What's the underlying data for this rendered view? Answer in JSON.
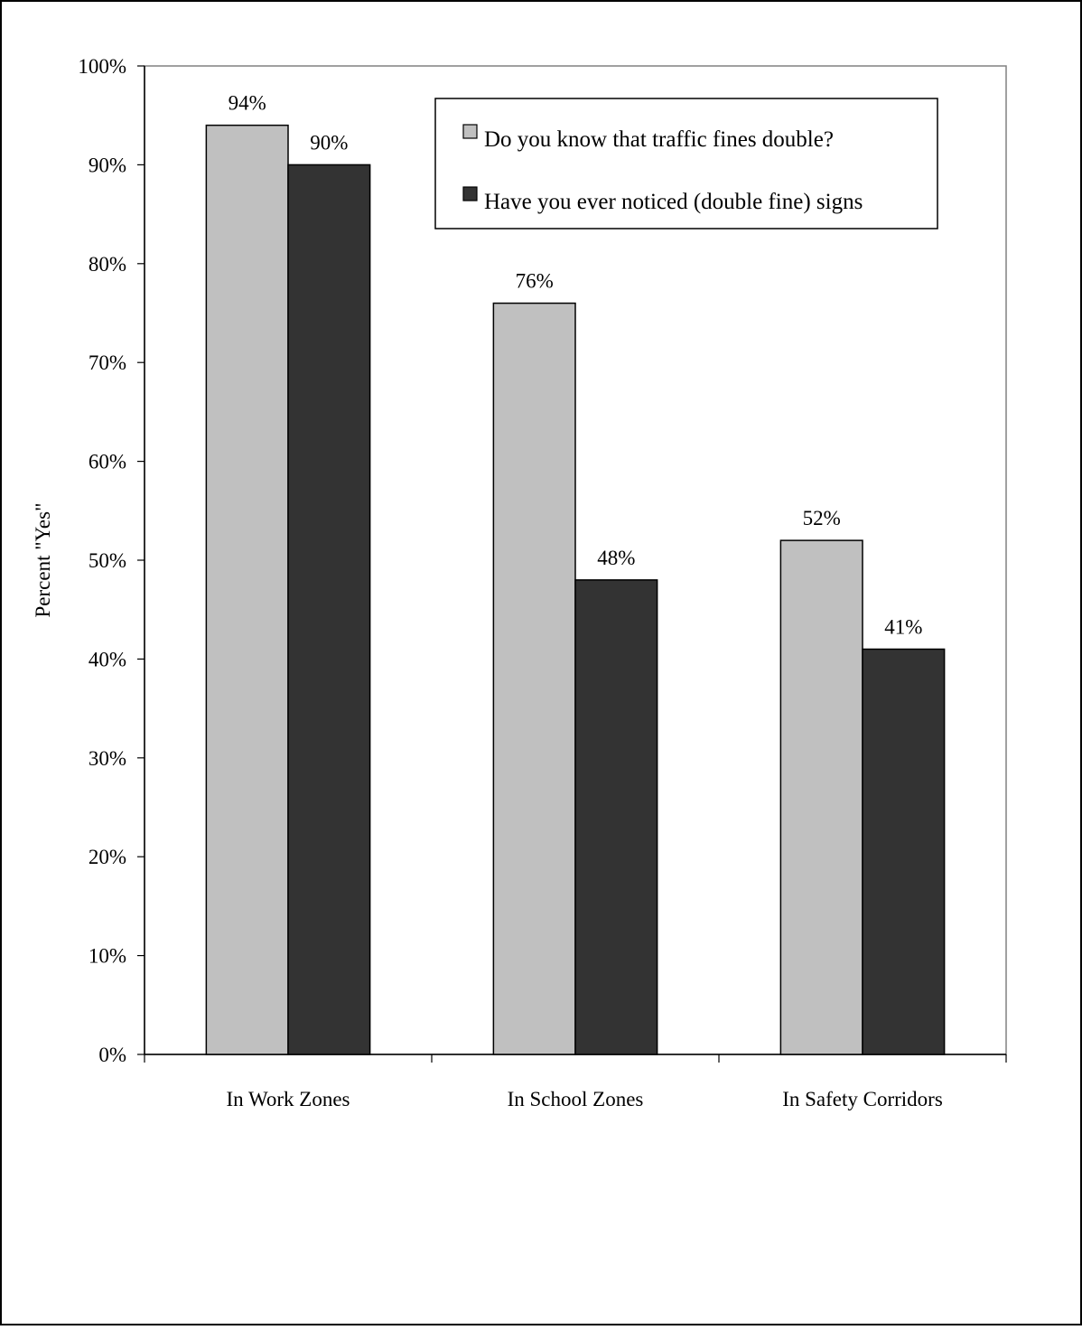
{
  "chart_data": {
    "type": "bar",
    "title": "",
    "xlabel": "",
    "ylabel": "Percent \"Yes\"",
    "categories": [
      "In Work Zones",
      "In School Zones",
      "In Safety Corridors"
    ],
    "series": [
      {
        "name": "Do you know that traffic fines double?",
        "values": [
          94,
          76,
          52
        ],
        "labels": [
          "94%",
          "76%",
          "52%"
        ],
        "color": "#c0c0c0"
      },
      {
        "name": "Have you ever noticed (double fine) signs",
        "values": [
          90,
          48,
          41
        ],
        "labels": [
          "90%",
          "48%",
          "41%"
        ],
        "color": "#333333"
      }
    ],
    "ylim": [
      0,
      100
    ],
    "yticks": [
      "0%",
      "10%",
      "20%",
      "30%",
      "40%",
      "50%",
      "60%",
      "70%",
      "80%",
      "90%",
      "100%"
    ],
    "grid": false,
    "legend_position": "top-right"
  }
}
